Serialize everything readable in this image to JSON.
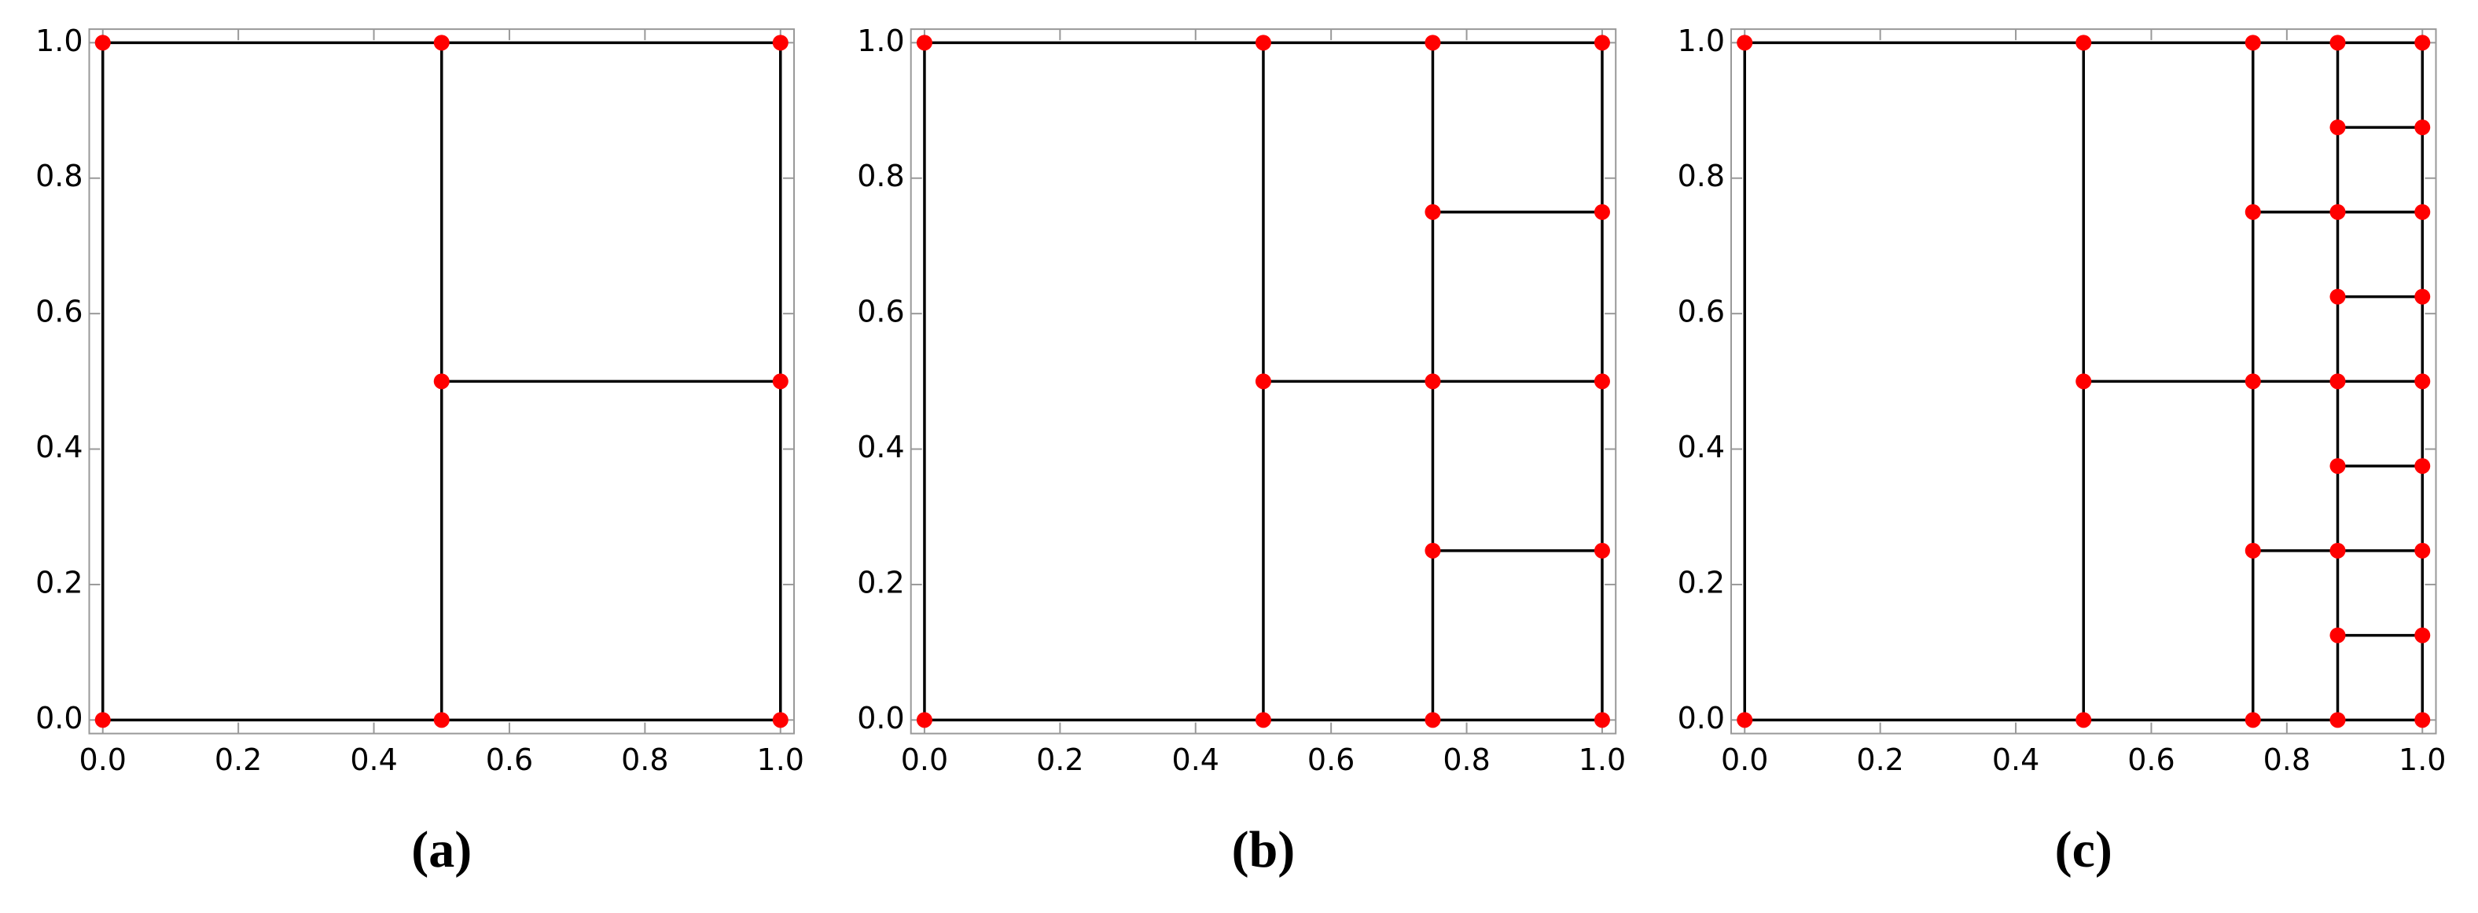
{
  "chart_data": [
    {
      "type": "scatter",
      "label": "(a)",
      "color": "#ff0000",
      "segment_color": "#000000",
      "xlim": [
        -0.02,
        1.02
      ],
      "ylim": [
        -0.02,
        1.02
      ],
      "xticks": [
        {
          "value": 0,
          "label": "0.0"
        },
        {
          "value": 0.2,
          "label": "0.2"
        },
        {
          "value": 0.4,
          "label": "0.4"
        },
        {
          "value": 0.6,
          "label": "0.6"
        },
        {
          "value": 0.8,
          "label": "0.8"
        },
        {
          "value": 1,
          "label": "1.0"
        }
      ],
      "yticks": [
        {
          "value": 0,
          "label": "0.0"
        },
        {
          "value": 0.2,
          "label": "0.2"
        },
        {
          "value": 0.4,
          "label": "0.4"
        },
        {
          "value": 0.6,
          "label": "0.6"
        },
        {
          "value": 0.8,
          "label": "0.8"
        },
        {
          "value": 1,
          "label": "1.0"
        }
      ],
      "x": [
        0,
        0.5,
        1,
        0,
        0.5,
        1,
        0.5,
        1
      ],
      "y": [
        0,
        0,
        0,
        1,
        1,
        1,
        0.5,
        0.5
      ],
      "segments": [
        {
          "x": [
            0,
            1
          ],
          "y": [
            0,
            0
          ]
        },
        {
          "x": [
            0,
            1
          ],
          "y": [
            1,
            1
          ]
        },
        {
          "x": [
            0,
            0
          ],
          "y": [
            0,
            1
          ]
        },
        {
          "x": [
            1,
            1
          ],
          "y": [
            0,
            1
          ]
        },
        {
          "x": [
            0.5,
            0.5
          ],
          "y": [
            0,
            1
          ]
        },
        {
          "x": [
            0.5,
            1
          ],
          "y": [
            0.5,
            0.5
          ]
        }
      ]
    },
    {
      "type": "scatter",
      "label": "(b)",
      "color": "#ff0000",
      "segment_color": "#000000",
      "xlim": [
        -0.02,
        1.02
      ],
      "ylim": [
        -0.02,
        1.02
      ],
      "xticks": [
        {
          "value": 0,
          "label": "0.0"
        },
        {
          "value": 0.2,
          "label": "0.2"
        },
        {
          "value": 0.4,
          "label": "0.4"
        },
        {
          "value": 0.6,
          "label": "0.6"
        },
        {
          "value": 0.8,
          "label": "0.8"
        },
        {
          "value": 1,
          "label": "1.0"
        }
      ],
      "yticks": [
        {
          "value": 0,
          "label": "0.0"
        },
        {
          "value": 0.2,
          "label": "0.2"
        },
        {
          "value": 0.4,
          "label": "0.4"
        },
        {
          "value": 0.6,
          "label": "0.6"
        },
        {
          "value": 0.8,
          "label": "0.8"
        },
        {
          "value": 1,
          "label": "1.0"
        }
      ],
      "x": [
        0,
        0.5,
        0.75,
        1,
        0,
        0.5,
        0.75,
        1,
        0.5,
        0.75,
        1,
        0.75,
        1,
        0.75,
        1
      ],
      "y": [
        0,
        0,
        0,
        0,
        1,
        1,
        1,
        1,
        0.5,
        0.5,
        0.5,
        0.25,
        0.25,
        0.75,
        0.75
      ],
      "segments": [
        {
          "x": [
            0,
            1
          ],
          "y": [
            0,
            0
          ]
        },
        {
          "x": [
            0,
            1
          ],
          "y": [
            1,
            1
          ]
        },
        {
          "x": [
            0,
            0
          ],
          "y": [
            0,
            1
          ]
        },
        {
          "x": [
            1,
            1
          ],
          "y": [
            0,
            1
          ]
        },
        {
          "x": [
            0.5,
            0.5
          ],
          "y": [
            0,
            1
          ]
        },
        {
          "x": [
            0.75,
            0.75
          ],
          "y": [
            0,
            1
          ]
        },
        {
          "x": [
            0.5,
            1
          ],
          "y": [
            0.5,
            0.5
          ]
        },
        {
          "x": [
            0.75,
            1
          ],
          "y": [
            0.25,
            0.25
          ]
        },
        {
          "x": [
            0.75,
            1
          ],
          "y": [
            0.75,
            0.75
          ]
        }
      ]
    },
    {
      "type": "scatter",
      "label": "(c)",
      "color": "#ff0000",
      "segment_color": "#000000",
      "xlim": [
        -0.02,
        1.02
      ],
      "ylim": [
        -0.02,
        1.02
      ],
      "xticks": [
        {
          "value": 0,
          "label": "0.0"
        },
        {
          "value": 0.2,
          "label": "0.2"
        },
        {
          "value": 0.4,
          "label": "0.4"
        },
        {
          "value": 0.6,
          "label": "0.6"
        },
        {
          "value": 0.8,
          "label": "0.8"
        },
        {
          "value": 1,
          "label": "1.0"
        }
      ],
      "yticks": [
        {
          "value": 0,
          "label": "0.0"
        },
        {
          "value": 0.2,
          "label": "0.2"
        },
        {
          "value": 0.4,
          "label": "0.4"
        },
        {
          "value": 0.6,
          "label": "0.6"
        },
        {
          "value": 0.8,
          "label": "0.8"
        },
        {
          "value": 1,
          "label": "1.0"
        }
      ],
      "x": [
        0,
        0.5,
        0.75,
        0.875,
        1,
        0,
        0.5,
        0.75,
        0.875,
        1,
        0.5,
        0.75,
        0.875,
        1,
        0.75,
        0.875,
        1,
        0.75,
        0.875,
        1,
        0.875,
        1,
        0.875,
        1,
        0.875,
        1,
        0.875,
        1
      ],
      "y": [
        0,
        0,
        0,
        0,
        0,
        1,
        1,
        1,
        1,
        1,
        0.5,
        0.5,
        0.5,
        0.5,
        0.25,
        0.25,
        0.25,
        0.75,
        0.75,
        0.75,
        0.125,
        0.125,
        0.375,
        0.375,
        0.625,
        0.625,
        0.875,
        0.875
      ],
      "segments": [
        {
          "x": [
            0,
            1
          ],
          "y": [
            0,
            0
          ]
        },
        {
          "x": [
            0,
            1
          ],
          "y": [
            1,
            1
          ]
        },
        {
          "x": [
            0,
            0
          ],
          "y": [
            0,
            1
          ]
        },
        {
          "x": [
            1,
            1
          ],
          "y": [
            0,
            1
          ]
        },
        {
          "x": [
            0.5,
            0.5
          ],
          "y": [
            0,
            1
          ]
        },
        {
          "x": [
            0.75,
            0.75
          ],
          "y": [
            0,
            1
          ]
        },
        {
          "x": [
            0.875,
            0.875
          ],
          "y": [
            0,
            1
          ]
        },
        {
          "x": [
            0.5,
            1
          ],
          "y": [
            0.5,
            0.5
          ]
        },
        {
          "x": [
            0.75,
            1
          ],
          "y": [
            0.25,
            0.25
          ]
        },
        {
          "x": [
            0.75,
            1
          ],
          "y": [
            0.75,
            0.75
          ]
        },
        {
          "x": [
            0.875,
            1
          ],
          "y": [
            0.125,
            0.125
          ]
        },
        {
          "x": [
            0.875,
            1
          ],
          "y": [
            0.375,
            0.375
          ]
        },
        {
          "x": [
            0.875,
            1
          ],
          "y": [
            0.625,
            0.625
          ]
        },
        {
          "x": [
            0.875,
            1
          ],
          "y": [
            0.875,
            0.875
          ]
        }
      ]
    }
  ]
}
